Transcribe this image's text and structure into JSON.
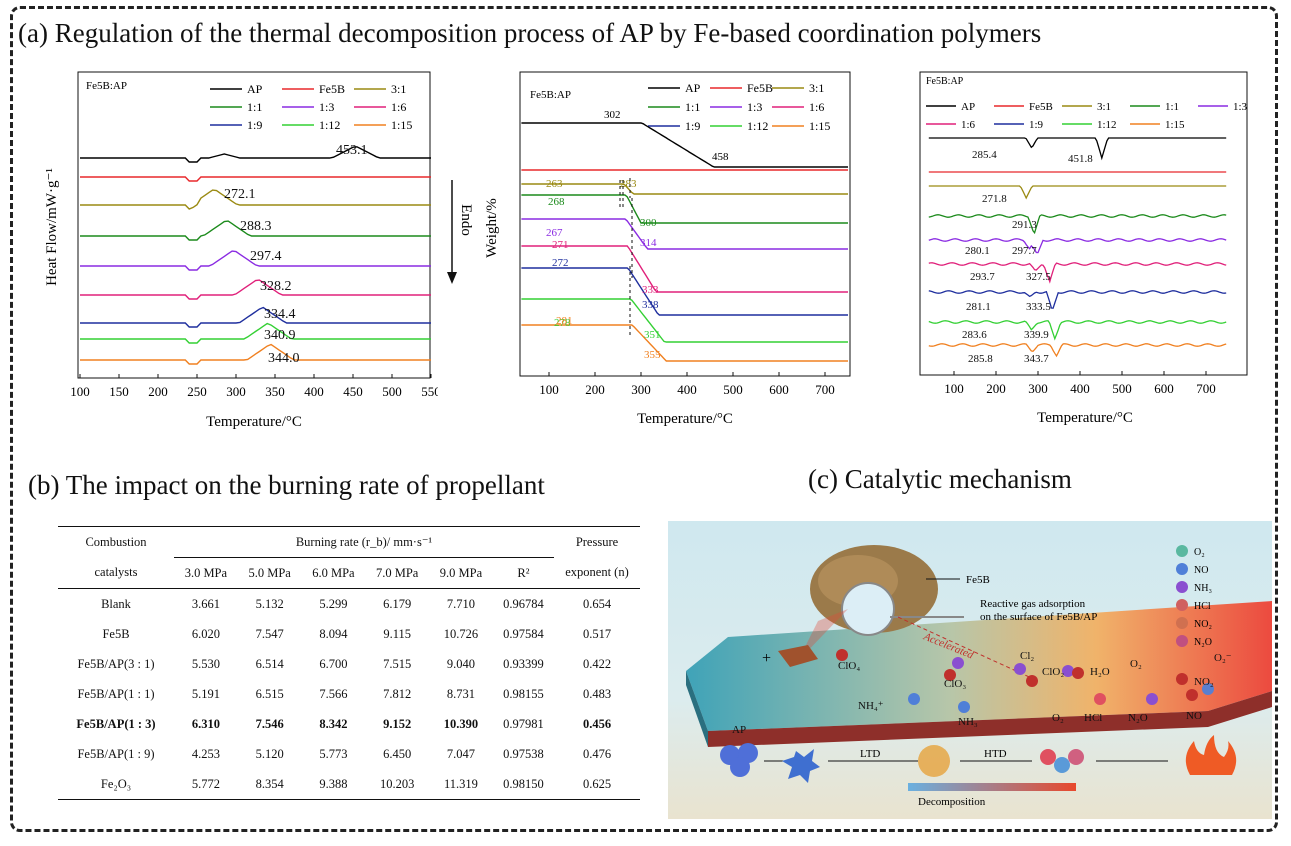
{
  "panel_a": {
    "title": "(a) Regulation of the thermal decomposition process of AP by Fe-based coordination polymers",
    "chart1": {
      "corner_label": "Fe5B:AP",
      "ylabel": "Heat Flow/mW·g⁻¹",
      "endo_label": "Endo",
      "xlabel": "Temperature/°C",
      "ticks": [
        "100",
        "150",
        "200",
        "250",
        "300",
        "350",
        "400",
        "450",
        "500",
        "550"
      ],
      "legend": [
        "AP",
        "Fe5B",
        "3:1",
        "1:1",
        "1:3",
        "1:6",
        "1:9",
        "1:12",
        "1:15"
      ],
      "peaks": [
        "453.1",
        "272.1",
        "288.3",
        "297.4",
        "328.2",
        "334.4",
        "340.9",
        "344.0"
      ]
    },
    "chart2": {
      "corner_label": "Fe5B:AP",
      "ylabel": "Weight/%",
      "xlabel": "Temperature/°C",
      "ticks": [
        "100",
        "200",
        "300",
        "400",
        "500",
        "600",
        "700"
      ],
      "legend": [
        "AP",
        "Fe5B",
        "3:1",
        "1:1",
        "1:3",
        "1:6",
        "1:9",
        "1:12",
        "1:15"
      ],
      "labels": [
        "302",
        "458",
        "263",
        "283",
        "268",
        "267",
        "300",
        "271",
        "314",
        "272",
        "333",
        "338",
        "278",
        "351",
        "281",
        "355"
      ]
    },
    "chart3": {
      "corner_label": "Fe5B:AP",
      "xlabel": "Temperature/°C",
      "ticks": [
        "100",
        "200",
        "300",
        "400",
        "500",
        "600",
        "700"
      ],
      "legend": [
        "AP",
        "Fe5B",
        "3:1",
        "1:1",
        "1:3",
        "1:6",
        "1:9",
        "1:12",
        "1:15"
      ],
      "labels": [
        "285.4",
        "451.8",
        "271.8",
        "291.3",
        "280.1",
        "297.7",
        "293.7",
        "327.5",
        "281.1",
        "333.5",
        "283.6",
        "339.9",
        "285.8",
        "343.7"
      ]
    }
  },
  "panel_b": {
    "title": "(b) The impact  on the burning rate of  propellant",
    "table": {
      "col1_head_top": "Combustion",
      "col1_head_bottom": "catalysts",
      "group_head": "Burning rate (r_b)/ mm·s⁻¹",
      "pressures": [
        "3.0 MPa",
        "5.0 MPa",
        "6.0 MPa",
        "7.0 MPa",
        "9.0 MPa"
      ],
      "r2_head": "R²",
      "exp_head_top": "Pressure",
      "exp_head_bottom": "exponent (n)",
      "rows": [
        {
          "name": "Blank",
          "vals": [
            "3.661",
            "5.132",
            "5.299",
            "6.179",
            "7.710",
            "0.96784",
            "0.654"
          ]
        },
        {
          "name": "Fe5B",
          "vals": [
            "6.020",
            "7.547",
            "8.094",
            "9.115",
            "10.726",
            "0.97584",
            "0.517"
          ]
        },
        {
          "name": "Fe5B/AP(3 : 1)",
          "vals": [
            "5.530",
            "6.514",
            "6.700",
            "7.515",
            "9.040",
            "0.93399",
            "0.422"
          ]
        },
        {
          "name": "Fe5B/AP(1 : 1)",
          "vals": [
            "5.191",
            "6.515",
            "7.566",
            "7.812",
            "8.731",
            "0.98155",
            "0.483"
          ]
        },
        {
          "name": "Fe5B/AP(1 : 3)",
          "vals": [
            "6.310",
            "7.546",
            "8.342",
            "9.152",
            "10.390",
            "0.97981",
            "0.456"
          ]
        },
        {
          "name": "Fe5B/AP(1 : 9)",
          "vals": [
            "4.253",
            "5.120",
            "5.773",
            "6.450",
            "7.047",
            "0.97538",
            "0.476"
          ]
        },
        {
          "name": "Fe₂O₃",
          "vals": [
            "5.772",
            "8.354",
            "9.388",
            "10.203",
            "11.319",
            "0.98150",
            "0.625"
          ]
        }
      ]
    }
  },
  "panel_c": {
    "title": "(c) Catalytic mechanism",
    "fe5b_label": "Fe5B",
    "adsorption_label_1": "Reactive gas adsorption",
    "adsorption_label_2": "on the surface of Fe5B/AP",
    "accelerated": "Accelerated",
    "species": [
      "ClO₄",
      "ClO₃",
      "Cl₂",
      "ClO₂",
      "H₂O",
      "O₂",
      "O₂⁻",
      "NH₄⁺",
      "NH₃",
      "O₂",
      "HCl",
      "N₂O",
      "NO",
      "NO₂",
      "AP"
    ],
    "legend": [
      "O₂",
      "NO",
      "NH₃",
      "HCl",
      "NO₂",
      "N₂O"
    ],
    "ltd": "LTD",
    "htd": "HTD",
    "decomposition": "Decomposition"
  },
  "colors": {
    "AP": "#000000",
    "Fe5B": "#e8282c",
    "3:1": "#9a8a12",
    "1:1": "#1b8a1b",
    "1:3": "#8a2be2",
    "1:6": "#e0207a",
    "1:9": "#1f2f9e",
    "1:12": "#34d034",
    "1:15": "#f08020"
  }
}
